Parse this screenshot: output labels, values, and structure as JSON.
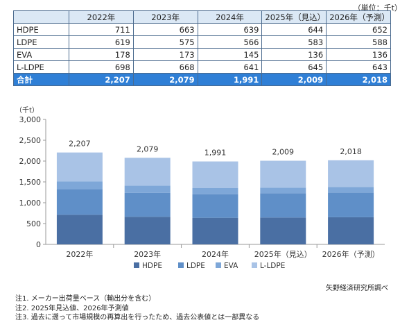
{
  "table": {
    "unit": "（単位：千t）",
    "headers": [
      "",
      "2022年",
      "2023年",
      "2024年",
      "2025年（見込）",
      "2026年（予測）"
    ],
    "rows": [
      [
        "HDPE",
        "711",
        "663",
        "639",
        "644",
        "652"
      ],
      [
        "LDPE",
        "619",
        "575",
        "566",
        "583",
        "588"
      ],
      [
        "EVA",
        "178",
        "173",
        "145",
        "136",
        "136"
      ],
      [
        "L-LDPE",
        "698",
        "668",
        "641",
        "645",
        "643"
      ]
    ],
    "total": [
      "合計",
      "2,207",
      "2,079",
      "1,991",
      "2,009",
      "2,018"
    ]
  },
  "chart_data": {
    "type": "bar",
    "stacked": true,
    "categories": [
      "2022年",
      "2023年",
      "2024年",
      "2025年（見込）",
      "2026年（予測）"
    ],
    "series": [
      {
        "name": "HDPE",
        "values": [
          711,
          663,
          639,
          644,
          652
        ],
        "color": "#4a6fa3"
      },
      {
        "name": "LDPE",
        "values": [
          619,
          575,
          566,
          583,
          588
        ],
        "color": "#5f8fc8"
      },
      {
        "name": "EVA",
        "values": [
          178,
          173,
          145,
          136,
          136
        ],
        "color": "#7ea7d8"
      },
      {
        "name": "L-LDPE",
        "values": [
          698,
          668,
          641,
          645,
          643
        ],
        "color": "#a9c3e6"
      }
    ],
    "totals": [
      "2,207",
      "2,079",
      "1,991",
      "2,009",
      "2,018"
    ],
    "ylabel": "（千t）",
    "ylim": [
      0,
      3000
    ],
    "yticks": [
      "0",
      "500",
      "1,000",
      "1,500",
      "2,000",
      "2,500",
      "3,000"
    ],
    "legend_position": "bottom",
    "grid": false
  },
  "source": "矢野経済研究所調べ",
  "notes": [
    "注1. メーカー出荷量ベース（輸出分を含む）",
    "注2. 2025年見込値、2026年予測値",
    "注3. 過去に遡って市場規模の再算出を行ったため、過去公表値とは一部異なる"
  ]
}
